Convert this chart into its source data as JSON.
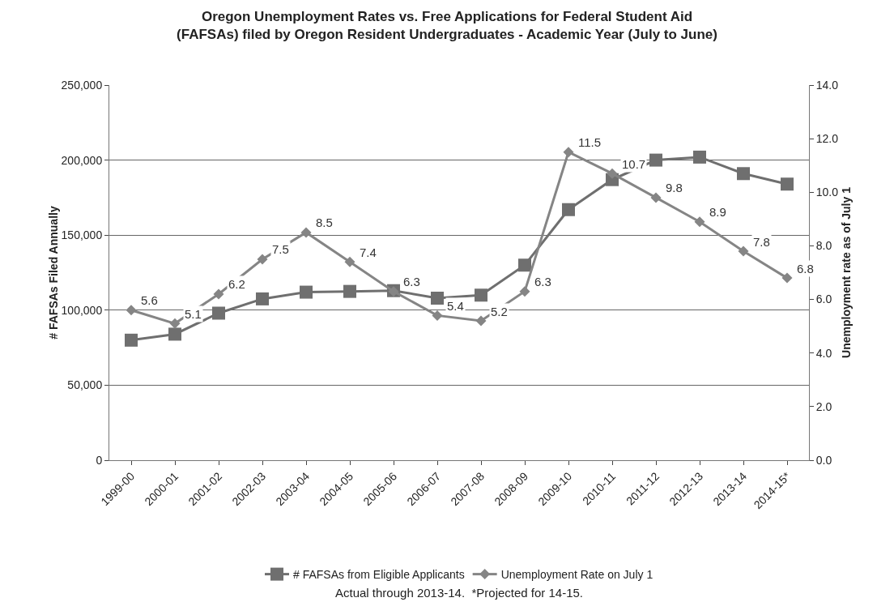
{
  "chart_data": {
    "type": "line",
    "title": "Oregon Unemployment Rates vs. Free Applications for Federal Student Aid\n(FAFSAs) filed by Oregon Resident Undergraduates - Academic Year (July to June)",
    "ylabel": "# FAFSAs Filed Annually",
    "y2label": "Unemployment rate as of July 1",
    "categories": [
      "1999-00",
      "2000-01",
      "2001-02",
      "2002-03",
      "2003-04",
      "2004-05",
      "2005-06",
      "2006-07",
      "2007-08",
      "2008-09",
      "2009-10",
      "2010-11",
      "2011-12",
      "2012-13",
      "2013-14",
      "2014-15*"
    ],
    "series": [
      {
        "name": "# FAFSAs from Eligible Applicants",
        "color": "#6f6f6f",
        "marker": "square",
        "values": [
          80000,
          84000,
          98000,
          107500,
          112000,
          112500,
          113000,
          108000,
          110000,
          130000,
          167000,
          187000,
          200000,
          202000,
          191000,
          184000
        ]
      },
      {
        "name": "Unemployment Rate on July 1",
        "color": "#858585",
        "marker": "diamond",
        "axis": "y2",
        "data_labels": true,
        "values": [
          5.6,
          5.1,
          6.2,
          7.5,
          8.5,
          7.4,
          6.3,
          5.4,
          5.2,
          6.3,
          11.5,
          10.7,
          9.8,
          8.9,
          7.8,
          6.8
        ]
      }
    ],
    "ylim": [
      0,
      250000
    ],
    "yticks": [
      {
        "value": 0,
        "label": "0"
      },
      {
        "value": 50000,
        "label": "50,000"
      },
      {
        "value": 100000,
        "label": "100,000"
      },
      {
        "value": 150000,
        "label": "150,000"
      },
      {
        "value": 200000,
        "label": "200,000"
      },
      {
        "value": 250000,
        "label": "250,000"
      }
    ],
    "y2lim": [
      0,
      14
    ],
    "y2ticks": [
      {
        "value": 0,
        "label": "0.0"
      },
      {
        "value": 2,
        "label": "2.0"
      },
      {
        "value": 4,
        "label": "4.0"
      },
      {
        "value": 6,
        "label": "6.0"
      },
      {
        "value": 8,
        "label": "8.0"
      },
      {
        "value": 10,
        "label": "10.0"
      },
      {
        "value": 12,
        "label": "12.0"
      },
      {
        "value": 14,
        "label": "14.0"
      }
    ],
    "grid": "y",
    "legend": "bottom",
    "line_style": "solid",
    "annotations": [
      "Actual through 2013-14.  *Projected for 14-15."
    ]
  }
}
